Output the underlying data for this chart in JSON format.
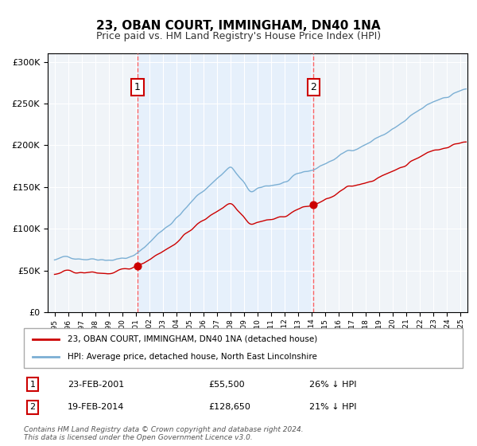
{
  "title": "23, OBAN COURT, IMMINGHAM, DN40 1NA",
  "subtitle": "Price paid vs. HM Land Registry's House Price Index (HPI)",
  "legend_line1": "23, OBAN COURT, IMMINGHAM, DN40 1NA (detached house)",
  "legend_line2": "HPI: Average price, detached house, North East Lincolnshire",
  "annotation1_date": "23-FEB-2001",
  "annotation1_price": "£55,500",
  "annotation1_hpi": "26% ↓ HPI",
  "annotation2_date": "19-FEB-2014",
  "annotation2_price": "£128,650",
  "annotation2_hpi": "21% ↓ HPI",
  "footer": "Contains HM Land Registry data © Crown copyright and database right 2024.\nThis data is licensed under the Open Government Licence v3.0.",
  "sale1_year": 2001.13,
  "sale1_price": 55500,
  "sale2_year": 2014.13,
  "sale2_price": 128650,
  "hpi_color": "#7bafd4",
  "price_color": "#cc0000",
  "shade_color": "#ddeeff",
  "background_color": "#f8f8f8",
  "grid_color": "#cccccc",
  "vline_color": "#ff6666",
  "ylabel_color": "#444444",
  "ylim": [
    0,
    310000
  ],
  "xlim_start": 1994.5,
  "xlim_end": 2025.5
}
